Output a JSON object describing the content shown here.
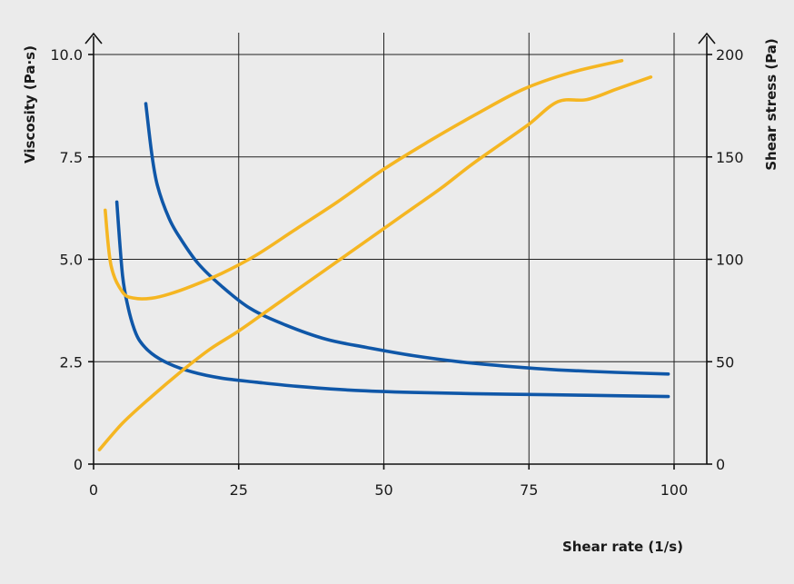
{
  "chart_data": {
    "type": "line",
    "title": "",
    "xlabel": "Shear rate (1/s)",
    "ylabel_left": "Viscosity (Pa·s)",
    "ylabel_right": "Shear stress (Pa)",
    "xlim": [
      0,
      100
    ],
    "ylim_left": [
      0,
      10
    ],
    "ylim_right": [
      0,
      200
    ],
    "x_ticks": [
      "0",
      "25",
      "50",
      "75",
      "100"
    ],
    "y_left_ticks": [
      "0",
      "2.5",
      "5.0",
      "7.5",
      "10.0"
    ],
    "y_right_ticks": [
      "0",
      "50",
      "100",
      "150",
      "200"
    ],
    "grid": true,
    "colors": {
      "viscosity": "#0f57a8",
      "shear_stress": "#f5b622"
    },
    "series": [
      {
        "axis": "left",
        "color": "#0f57a8",
        "x": [
          4,
          5,
          6,
          7,
          8,
          10,
          13,
          17,
          22,
          28,
          35,
          45,
          55,
          65,
          75,
          85,
          99
        ],
        "y": [
          6.4,
          4.6,
          3.8,
          3.3,
          3.0,
          2.7,
          2.45,
          2.25,
          2.1,
          2.0,
          1.9,
          1.8,
          1.75,
          1.72,
          1.7,
          1.68,
          1.65
        ]
      },
      {
        "axis": "left",
        "color": "#0f57a8",
        "x": [
          9,
          10,
          11,
          13,
          15,
          18,
          22,
          27,
          33,
          40,
          47,
          55,
          63,
          72,
          80,
          90,
          99
        ],
        "y": [
          8.8,
          7.6,
          6.8,
          6.0,
          5.5,
          4.9,
          4.35,
          3.8,
          3.4,
          3.05,
          2.85,
          2.65,
          2.5,
          2.38,
          2.3,
          2.24,
          2.2
        ]
      },
      {
        "axis": "right",
        "color": "#f5b622",
        "x": [
          2,
          3,
          5,
          7,
          10,
          13,
          17,
          22,
          28,
          35,
          42,
          50,
          58,
          66,
          74,
          82,
          91
        ],
        "y": [
          124,
          97,
          84,
          81,
          81,
          83,
          87,
          93,
          102,
          115,
          128,
          144,
          158,
          171,
          183,
          191,
          197
        ]
      },
      {
        "axis": "right",
        "color": "#f5b622",
        "x": [
          1,
          5,
          10,
          15,
          20,
          25,
          30,
          35,
          40,
          45,
          50,
          55,
          60,
          65,
          70,
          75,
          80,
          85,
          90,
          96
        ],
        "y": [
          7,
          20,
          33,
          45,
          56,
          65,
          75,
          85,
          95,
          105,
          115,
          125,
          135,
          146,
          156,
          166,
          177,
          178,
          183,
          189
        ]
      }
    ]
  }
}
